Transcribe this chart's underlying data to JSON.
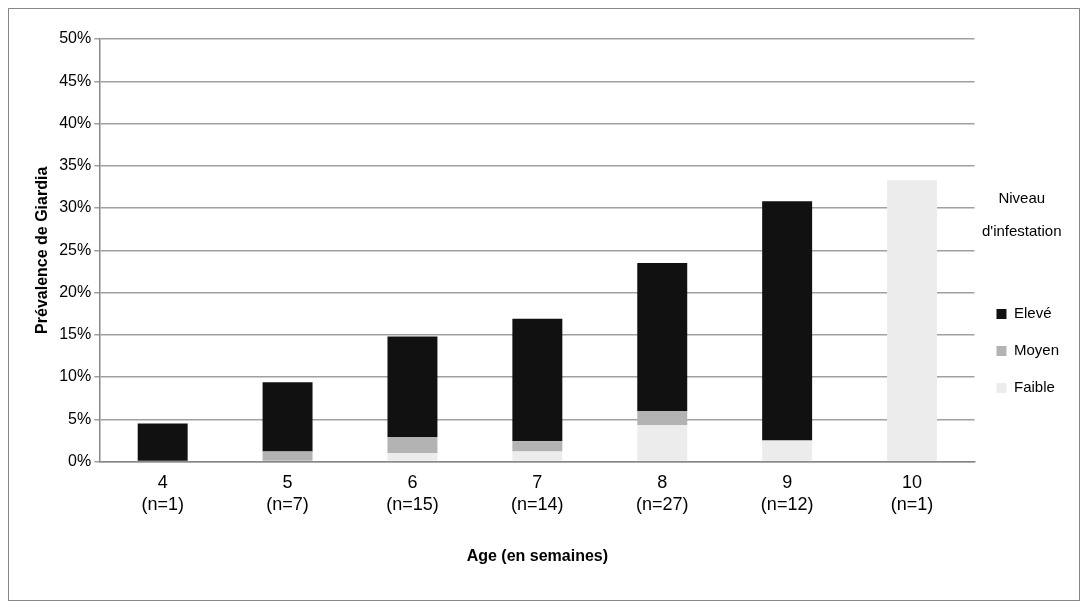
{
  "chart_data": {
    "type": "bar",
    "stacked": true,
    "xlabel": "Age (en semaines)",
    "ylabel": "Prévalence de Giardia",
    "legend_title": "Niveau d'infestation",
    "legend": "right",
    "grid": "y",
    "categories": [
      "4 (n=1)",
      "5 (n=7)",
      "6 (n=15)",
      "7 (n=14)",
      "8 (n=27)",
      "9 (n=12)",
      "10 (n=1)"
    ],
    "ylim": [
      0,
      50
    ],
    "yticks": [
      {
        "value": 0,
        "label": "0%"
      },
      {
        "value": 5,
        "label": "5%"
      },
      {
        "value": 10,
        "label": "10%"
      },
      {
        "value": 15,
        "label": "15%"
      },
      {
        "value": 20,
        "label": "20%"
      },
      {
        "value": 25,
        "label": "25%"
      },
      {
        "value": 30,
        "label": "30%"
      },
      {
        "value": 35,
        "label": "35%"
      },
      {
        "value": 40,
        "label": "40%"
      },
      {
        "value": 45,
        "label": "45%"
      },
      {
        "value": 50,
        "label": "50%"
      }
    ],
    "series": [
      {
        "name": "Faible",
        "color": "#ececec",
        "values": [
          0,
          0,
          1.0,
          1.2,
          4.3,
          2.5,
          33.3
        ]
      },
      {
        "name": "Moyen",
        "color": "#b3b3b3",
        "values": [
          0,
          1.2,
          1.9,
          1.2,
          1.7,
          0,
          0
        ]
      },
      {
        "name": "Elevé",
        "color": "#111111",
        "values": [
          4.5,
          8.2,
          11.9,
          14.5,
          17.5,
          28.3,
          0
        ]
      }
    ]
  }
}
